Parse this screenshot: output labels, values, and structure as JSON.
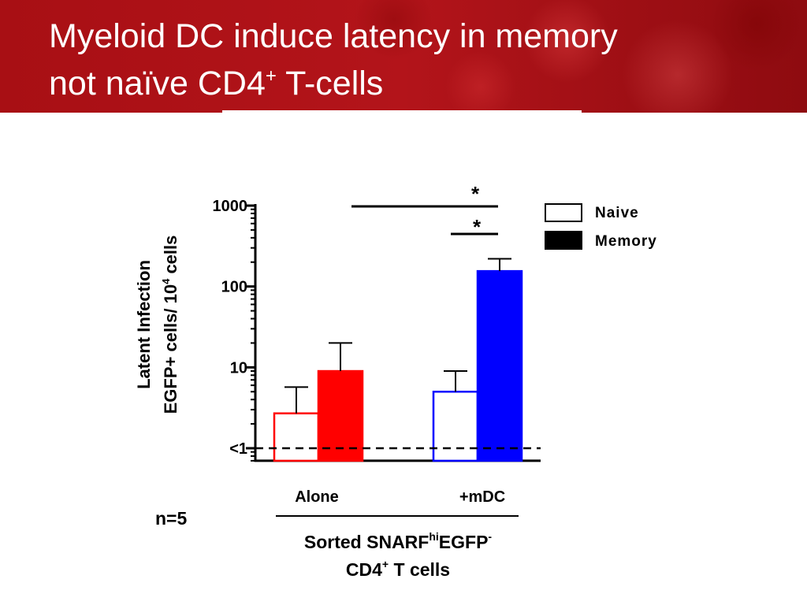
{
  "slide": {
    "title_line1": "Myeloid DC induce latency in memory",
    "title_line2_pre": "not naïve CD4",
    "title_line2_sup": "+",
    "title_line2_post": " T-cells",
    "n_label": "n=5"
  },
  "colors": {
    "header": "#b3141a",
    "naive_fill": "#ffffff",
    "memory_legend": "#000000",
    "alone_color": "#ff0000",
    "mdc_color": "#0000ff"
  },
  "chart_data": {
    "type": "bar",
    "scale": "log",
    "ylim": [
      0.7,
      1000
    ],
    "ylabel_line1": "Latent Infection",
    "ylabel_line2": "EGFP+ cells/ 10",
    "ylabel_line2_sup": "4",
    "ylabel_line2_post": " cells",
    "yticks": [
      {
        "value": 1,
        "label": "<1"
      },
      {
        "value": 10,
        "label": "10"
      },
      {
        "value": 100,
        "label": "100"
      },
      {
        "value": 1000,
        "label": "1000"
      }
    ],
    "categories": [
      "Alone",
      "+mDC"
    ],
    "series": [
      {
        "name": "Naive",
        "values": [
          2.7,
          5.0
        ],
        "errors": [
          5.7,
          9.0
        ]
      },
      {
        "name": "Memory",
        "values": [
          9.0,
          155
        ],
        "errors": [
          20,
          220
        ]
      }
    ],
    "detection_limit": 1,
    "xlabel_line1": "Sorted SNARF",
    "xlabel_line1_sup1": "hi",
    "xlabel_line1_mid": "EGFP",
    "xlabel_line1_sup2": "-",
    "xlabel_line2": "CD4",
    "xlabel_line2_sup": "+",
    "xlabel_line2_post": " T cells",
    "significance": [
      {
        "label": "*",
        "from": "Alone Memory",
        "to": "+mDC Memory"
      },
      {
        "label": "*",
        "from": "+mDC Naive",
        "to": "+mDC Memory"
      }
    ],
    "legend": "top-right"
  }
}
